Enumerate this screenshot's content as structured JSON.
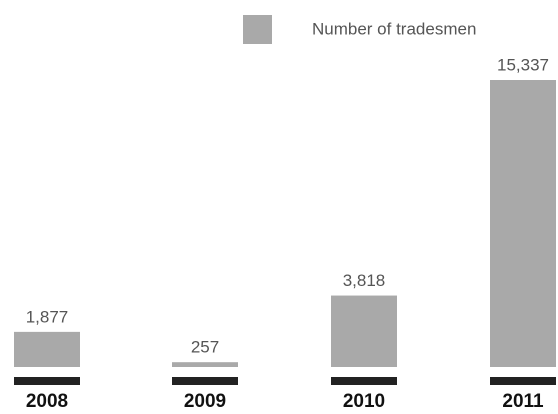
{
  "chart_data": {
    "type": "bar",
    "categories": [
      "2008",
      "2009",
      "2010",
      "2011"
    ],
    "series": [
      {
        "name": "Number of tradesmen",
        "color": "#a9a9a9",
        "values": [
          1877,
          257,
          3818,
          15337
        ],
        "value_labels": [
          "1,877",
          "257",
          "3,818",
          "15,337"
        ]
      }
    ]
  }
}
